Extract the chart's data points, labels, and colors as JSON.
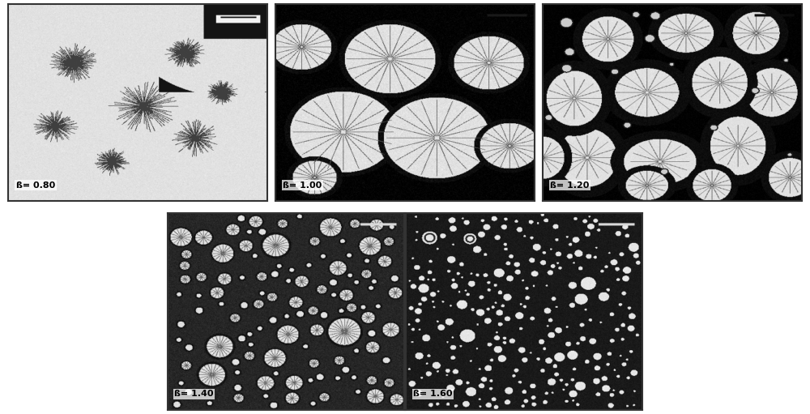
{
  "labels": [
    "ß= 0.80",
    "ß= 1.00",
    "ß= 1.20",
    "ß= 1.40",
    "ß= 1.60"
  ],
  "label_fontsize": 8,
  "figure_bg": "#ffffff",
  "border_color": "#333333"
}
